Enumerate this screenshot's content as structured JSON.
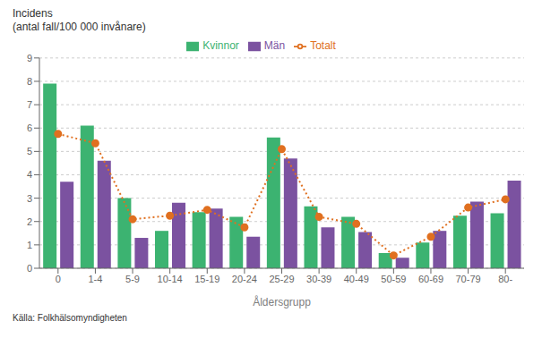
{
  "chart_data": {
    "type": "bar",
    "xlabel": "Åldersgrupp",
    "ylabel": [
      "Incidens",
      "(antal fall/100 000 invånare)"
    ],
    "annotations": [
      "Källa: Folkhälsomyndigheten"
    ],
    "categories": [
      "0",
      "1-4",
      "5-9",
      "10-14",
      "15-19",
      "20-24",
      "25-29",
      "30-39",
      "40-49",
      "50-59",
      "60-69",
      "70-79",
      "80-"
    ],
    "series": [
      {
        "name": "Kvinnor",
        "type": "bar",
        "color": "#3cb371",
        "values": [
          7.9,
          6.1,
          3.0,
          1.6,
          2.4,
          2.2,
          5.6,
          2.65,
          2.2,
          0.65,
          1.1,
          2.25,
          2.35
        ]
      },
      {
        "name": "Män",
        "type": "bar",
        "color": "#7b52a0",
        "values": [
          3.7,
          4.6,
          1.3,
          2.8,
          2.55,
          1.35,
          4.7,
          1.75,
          1.55,
          0.45,
          1.6,
          2.85,
          3.75
        ]
      },
      {
        "name": "Totalt",
        "type": "line",
        "color": "#e07020",
        "line_style": "dotted",
        "marker": "circle",
        "values": [
          5.75,
          5.35,
          2.1,
          2.25,
          2.5,
          1.75,
          5.1,
          2.2,
          1.9,
          0.55,
          1.35,
          2.6,
          2.95
        ]
      }
    ],
    "ylim": [
      0,
      9
    ],
    "yticks": [
      0,
      1,
      2,
      3,
      4,
      5,
      6,
      7,
      8,
      9
    ],
    "grid": true,
    "legend": "top"
  }
}
